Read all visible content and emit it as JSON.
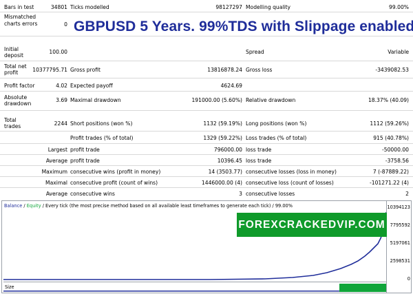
{
  "report": {
    "headline": "GBPUSD 5 Years. 99%TDS with Slippage enabled.",
    "rows": {
      "bars": {
        "label": "Bars in test",
        "value": "34801",
        "label2": "Ticks modelled",
        "value2": "98127297",
        "label3": "Modelling quality",
        "value3": "99.00%"
      },
      "mismatch": {
        "label": "Mismatched charts errors",
        "value": "0"
      },
      "deposit": {
        "label": "Initial deposit",
        "value": "100.00",
        "label3": "Spread",
        "value3": "Variable"
      },
      "netprofit": {
        "label": "Total net profit",
        "value": "10377795.71",
        "label2": "Gross profit",
        "value2": "13816878.24",
        "label3": "Gross loss",
        "value3": "-3439082.53"
      },
      "pf": {
        "label": "Profit factor",
        "value": "4.02",
        "label2": "Expected payoff",
        "value2": "4624.69"
      },
      "absdd": {
        "label": "Absolute drawdown",
        "value": "3.69",
        "label2": "Maximal drawdown",
        "value2": "191000.00 (5.60%)",
        "label3": "Relative drawdown",
        "value3": "18.37% (40.09)"
      },
      "trades": {
        "label": "Total trades",
        "value": "2244",
        "label2": "Short positions (won %)",
        "value2": "1132 (59.19%)",
        "label3": "Long positions (won %)",
        "value3": "1112 (59.26%)"
      },
      "ptrades": {
        "label2": "Profit trades (% of total)",
        "value2": "1329 (59.22%)",
        "label3": "Loss trades (% of total)",
        "value3": "915 (40.78%)"
      },
      "largest": {
        "prefix": "Largest",
        "label2": "profit trade",
        "value2": "796000.00",
        "label3": "loss trade",
        "value3": "-50000.00"
      },
      "average": {
        "prefix": "Average",
        "label2": "profit trade",
        "value2": "10396.45",
        "label3": "loss trade",
        "value3": "-3758.56"
      },
      "maxcons": {
        "prefix": "Maximum",
        "label2": "consecutive wins (profit in money)",
        "value2": "14 (3503.77)",
        "label3": "consecutive losses (loss in money)",
        "value3": "7 (-87889.22)"
      },
      "maximal": {
        "prefix": "Maximal",
        "label2": "consecutive profit (count of wins)",
        "value2": "1446000.00 (4)",
        "label3": "consecutive loss (count of losses)",
        "value3": "-101271.22 (4)"
      },
      "avgcons": {
        "prefix": "Average",
        "label2": "consecutive wins",
        "value2": "3",
        "label3": "consecutive losses",
        "value3": "2"
      }
    }
  },
  "chart": {
    "legend_balance": "Balance",
    "legend_sep": "/",
    "legend_equity": "Equity",
    "legend_rest": "/ Every tick (the most precise method based on all available least timeframes to generate each tick) / 99.00%",
    "y_ticks": [
      "10394123",
      "7795592",
      "5197061",
      "2598531",
      "0"
    ],
    "size_label": "Size",
    "line_color": "#1f2d9a",
    "size_color": "#10a53a"
  },
  "watermark": "FOREXCRACKEDVIP.COM"
}
